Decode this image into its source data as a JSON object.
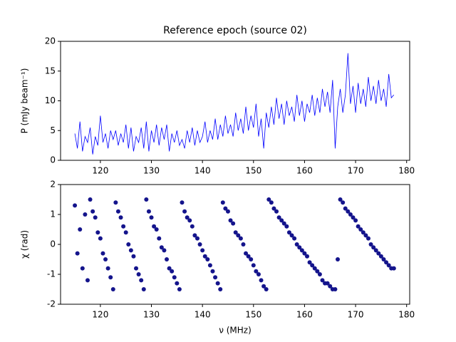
{
  "chart_data": [
    {
      "type": "line",
      "title": "Reference epoch (source 02)",
      "y_label": "P (mJy beam⁻¹)",
      "xlim": [
        112.2,
        180.6
      ],
      "xticks": [
        120,
        130,
        140,
        150,
        160,
        170,
        180
      ],
      "ylim": [
        0,
        20
      ],
      "yticks": [
        0,
        5,
        10,
        15,
        20
      ],
      "series": [
        {
          "color": "#0000ff",
          "x": [
            115,
            115.5,
            116,
            116.5,
            117,
            117.5,
            118,
            118.5,
            119,
            119.5,
            120,
            120.5,
            121,
            121.5,
            122,
            122.5,
            123,
            123.5,
            124,
            124.5,
            125,
            125.5,
            126,
            126.5,
            127,
            127.5,
            128,
            128.5,
            129,
            129.5,
            130,
            130.5,
            131,
            131.5,
            132,
            132.5,
            133,
            133.5,
            134,
            134.5,
            135,
            135.5,
            136,
            136.5,
            137,
            137.5,
            138,
            138.5,
            139,
            139.5,
            140,
            140.5,
            141,
            141.5,
            142,
            142.5,
            143,
            143.5,
            144,
            144.5,
            145,
            145.5,
            146,
            146.5,
            147,
            147.5,
            148,
            148.5,
            149,
            149.5,
            150,
            150.5,
            151,
            151.5,
            152,
            152.5,
            153,
            153.5,
            154,
            154.5,
            155,
            155.5,
            156,
            156.5,
            157,
            157.5,
            158,
            158.5,
            159,
            159.5,
            160,
            160.5,
            161,
            161.5,
            162,
            162.5,
            163,
            163.5,
            164,
            164.5,
            165,
            165.5,
            166,
            166.5,
            167,
            167.5,
            168,
            168.5,
            169,
            169.5,
            170,
            170.5,
            171,
            171.5,
            172,
            172.5,
            173,
            173.5,
            174,
            174.5,
            175,
            175.5,
            176,
            176.5,
            177,
            177.5
          ],
          "values": [
            4.5,
            2,
            6.5,
            1.5,
            4,
            3,
            5.5,
            1,
            4,
            2.5,
            7.5,
            3,
            4.5,
            2,
            5,
            3.5,
            5,
            2.5,
            4.5,
            3,
            6,
            2,
            5.5,
            1.5,
            4,
            3,
            5.5,
            2,
            6.5,
            1.5,
            5,
            3,
            6,
            2.5,
            5.5,
            3.5,
            6,
            1.5,
            4.5,
            3,
            5,
            2.5,
            3.5,
            2,
            5,
            3,
            5.5,
            2.5,
            5,
            3,
            4,
            6.5,
            3,
            5,
            3.5,
            7,
            3.5,
            6,
            4,
            7.5,
            4.5,
            6,
            4,
            8,
            5,
            7,
            4.5,
            9,
            5,
            7.5,
            5.5,
            9.5,
            4,
            7,
            2,
            8,
            5.5,
            9,
            6,
            10.5,
            7,
            9.5,
            6,
            10,
            7.5,
            9,
            6.5,
            11,
            7.5,
            10,
            6.5,
            9.5,
            8,
            11,
            7.5,
            10.5,
            8,
            12,
            9,
            11.5,
            8,
            13.5,
            2,
            9,
            12,
            8,
            11,
            18,
            9.5,
            12.5,
            8,
            13,
            9.5,
            12,
            9,
            14,
            10,
            12.5,
            9.5,
            13.5,
            10,
            12,
            9,
            14.5,
            10.5,
            11
          ]
        }
      ]
    },
    {
      "type": "scatter",
      "x_label": "ν (MHz)",
      "y_label": "χ (rad)",
      "xlim": [
        112.2,
        180.6
      ],
      "xticks": [
        120,
        130,
        140,
        150,
        160,
        170,
        180
      ],
      "ylim": [
        -2,
        2
      ],
      "yticks": [
        -2,
        -1,
        0,
        1,
        2
      ],
      "series": [
        {
          "color": "#14148c",
          "x": [
            115,
            115.5,
            116,
            116.5,
            117,
            117.5,
            118,
            118.5,
            119,
            119.5,
            120,
            120.5,
            121,
            121.5,
            122,
            122.5,
            123,
            123.5,
            124,
            124.5,
            125,
            125.5,
            126,
            126.5,
            127,
            127.5,
            128,
            128.5,
            129,
            129.5,
            130,
            130.5,
            131,
            131.5,
            132,
            132.5,
            133,
            133.5,
            134,
            134.5,
            135,
            135.5,
            136,
            136.5,
            137,
            137.5,
            138,
            138.5,
            139,
            139.5,
            140,
            140.5,
            141,
            141.5,
            142,
            142.5,
            143,
            143.5,
            144,
            144.5,
            145,
            145.5,
            146,
            146.5,
            147,
            147.5,
            148,
            148.5,
            149,
            149.5,
            150,
            150.5,
            151,
            151.5,
            152,
            152.5,
            153,
            153.5,
            154,
            154.5,
            155,
            155.5,
            156,
            156.5,
            157,
            157.5,
            158,
            158.5,
            159,
            159.5,
            160,
            160.5,
            161,
            161.5,
            162,
            162.5,
            163,
            163.5,
            164,
            164.5,
            165,
            165.5,
            166,
            166.5,
            167,
            167.5,
            168,
            168.5,
            169,
            169.5,
            170,
            170.5,
            171,
            171.5,
            172,
            172.5,
            173,
            173.5,
            174,
            174.5,
            175,
            175.5,
            176,
            176.5,
            177,
            177.5
          ],
          "values": [
            1.3,
            -0.3,
            0.5,
            -0.8,
            1.0,
            -1.2,
            1.5,
            1.1,
            0.9,
            0.4,
            0.2,
            -0.3,
            -0.5,
            -0.8,
            -1.1,
            -1.5,
            1.4,
            1.1,
            0.9,
            0.6,
            0.4,
            0.0,
            -0.2,
            -0.4,
            -0.8,
            -1.0,
            -1.2,
            -1.5,
            1.5,
            1.1,
            0.9,
            0.6,
            0.5,
            0.2,
            -0.1,
            -0.2,
            -0.5,
            -0.8,
            -0.9,
            -1.1,
            -1.3,
            -1.5,
            1.4,
            1.1,
            0.9,
            0.8,
            0.6,
            0.3,
            0.2,
            0.0,
            -0.2,
            -0.4,
            -0.5,
            -0.7,
            -0.9,
            -1.1,
            -1.3,
            -1.5,
            1.4,
            1.2,
            1.1,
            0.8,
            0.7,
            0.4,
            0.3,
            0.2,
            0.0,
            -0.3,
            -0.4,
            -0.5,
            -0.7,
            -0.9,
            -1.0,
            -1.2,
            -1.4,
            -1.5,
            1.5,
            1.4,
            1.2,
            1.1,
            0.9,
            0.8,
            0.7,
            0.6,
            0.4,
            0.3,
            0.2,
            0.0,
            -0.1,
            -0.2,
            -0.3,
            -0.4,
            -0.6,
            -0.7,
            -0.8,
            -0.9,
            -1.0,
            -1.2,
            -1.3,
            -1.3,
            -1.4,
            -1.5,
            -1.5,
            -0.5,
            1.5,
            1.4,
            1.2,
            1.1,
            1.0,
            0.9,
            0.8,
            0.6,
            0.5,
            0.4,
            0.3,
            0.2,
            0.0,
            -0.1,
            -0.2,
            -0.3,
            -0.4,
            -0.5,
            -0.6,
            -0.7,
            -0.8,
            -0.8
          ]
        }
      ]
    }
  ]
}
